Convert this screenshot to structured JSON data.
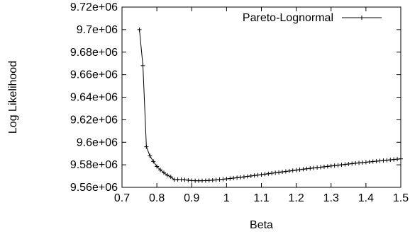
{
  "chart_data": {
    "type": "line",
    "xlabel": "Beta",
    "ylabel": "Log Likelihood",
    "xlim": [
      0.7,
      1.5
    ],
    "ylim": [
      9560000,
      9720000
    ],
    "x_ticks": [
      "0.7",
      "0.8",
      "0.9",
      "1",
      "1.1",
      "1.2",
      "1.3",
      "1.4",
      "1.5"
    ],
    "y_ticks": [
      "9.56e+06",
      "9.58e+06",
      "9.6e+06",
      "9.62e+06",
      "9.64e+06",
      "9.66e+06",
      "9.68e+06",
      "9.7e+06",
      "9.72e+06"
    ],
    "grid": false,
    "legend": "top-right",
    "series": [
      {
        "name": "Pareto-Lognormal",
        "color": "#000000",
        "marker": "plus",
        "x": [
          0.75,
          0.76,
          0.77,
          0.78,
          0.79,
          0.8,
          0.81,
          0.82,
          0.83,
          0.84,
          0.85,
          0.86,
          0.87,
          0.88,
          0.89,
          0.9,
          0.91,
          0.92,
          0.93,
          0.94,
          0.95,
          0.96,
          0.97,
          0.98,
          0.99,
          1.0,
          1.01,
          1.02,
          1.03,
          1.04,
          1.05,
          1.06,
          1.07,
          1.08,
          1.09,
          1.1,
          1.11,
          1.12,
          1.13,
          1.14,
          1.15,
          1.16,
          1.17,
          1.18,
          1.19,
          1.2,
          1.21,
          1.22,
          1.23,
          1.24,
          1.25,
          1.26,
          1.27,
          1.28,
          1.29,
          1.3,
          1.31,
          1.32,
          1.33,
          1.34,
          1.35,
          1.36,
          1.37,
          1.38,
          1.39,
          1.4,
          1.41,
          1.42,
          1.43,
          1.44,
          1.45,
          1.46,
          1.47,
          1.48,
          1.49,
          1.5
        ],
        "y": [
          9700000,
          9668000,
          9596000,
          9588000,
          9583000,
          9578500,
          9575500,
          9573000,
          9570800,
          9569300,
          9566800,
          9567000,
          9566900,
          9566700,
          9566300,
          9566000,
          9565900,
          9565850,
          9565900,
          9566000,
          9566150,
          9566350,
          9566600,
          9566900,
          9567200,
          9567500,
          9567850,
          9568200,
          9568550,
          9568900,
          9569300,
          9569700,
          9570100,
          9570500,
          9570900,
          9571300,
          9571700,
          9572100,
          9572500,
          9572900,
          9573300,
          9573700,
          9574100,
          9574500,
          9574900,
          9575300,
          9575700,
          9576100,
          9576500,
          9576850,
          9577200,
          9577550,
          9577900,
          9578250,
          9578600,
          9578950,
          9579300,
          9579650,
          9580000,
          9580350,
          9580700,
          9581050,
          9581400,
          9581700,
          9582000,
          9582300,
          9582600,
          9582900,
          9583200,
          9583500,
          9583800,
          9584100,
          9584400,
          9584700,
          9585000,
          9585300
        ]
      }
    ]
  }
}
